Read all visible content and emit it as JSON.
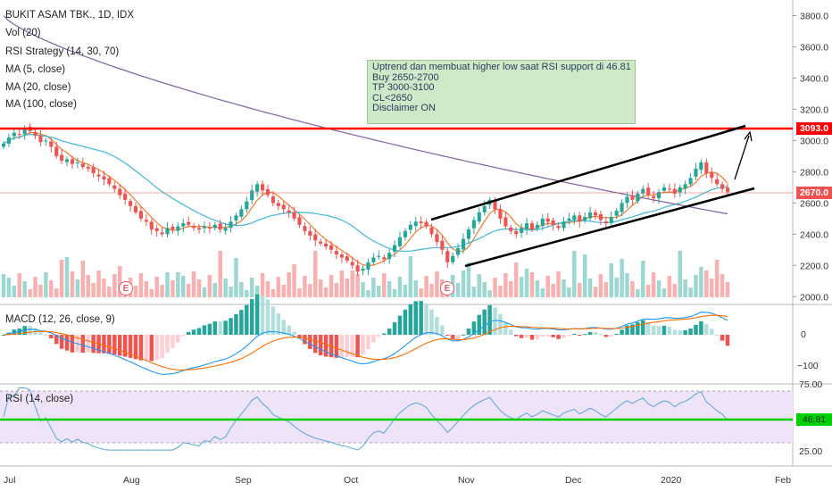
{
  "header": {
    "symbol_line": "BUKIT ASAM TBK., 1D, IDX",
    "volume": "Vol (20)",
    "strategy": "RSI Strategy (14, 30, 70)",
    "ma5": "MA (5, close)",
    "ma20": "MA (20, close)",
    "ma100": "MA (100, close)"
  },
  "note": {
    "line1": "Uptrend dan membuat higher low saat RSI support  di 46.81",
    "line2": "Buy 2650-2700",
    "line3": "TP 3000-3100",
    "line4": "CL<2650",
    "line5": "Disclaimer ON"
  },
  "tags": {
    "resistance": "3093.0",
    "last_price": "2670.0",
    "rsi_value": "46.81"
  },
  "earnings_marker": "E",
  "panels": {
    "macd_label": "MACD (12, 26, close, 9)",
    "rsi_label": "RSI (14, close)"
  },
  "colors": {
    "up": "#26a69a",
    "down": "#ef5350",
    "resistance_line": "#ff0000",
    "rsi_support_line": "#00d000",
    "ma5": "#f07b2c",
    "ma20": "#3fb8d9",
    "ma100": "#7e5fa2",
    "rsi_band": "#efe3f7"
  },
  "chart_data": {
    "type": "candlestick",
    "price_axis_ticks": [
      "3800.0",
      "3600.0",
      "3400.0",
      "3200.0",
      "3000.0",
      "2800.0",
      "2600.0",
      "2400.0",
      "2200.0",
      "2000.0"
    ],
    "macd_axis_ticks": [
      "0",
      "−100"
    ],
    "rsi_axis_ticks": [
      "75.00",
      "25.00"
    ],
    "x_tick_labels": [
      "Jul",
      "Aug",
      "Sep",
      "Oct",
      "Nov",
      "Dec",
      "2020",
      "Feb"
    ],
    "ylim_price": [
      1950,
      3900
    ],
    "resistance_level": 3093.0,
    "last_close": 2670.0,
    "rsi_last": 46.81,
    "closes": [
      2980,
      3020,
      3050,
      3040,
      3080,
      3060,
      3030,
      2990,
      3000,
      2960,
      2900,
      2870,
      2880,
      2850,
      2860,
      2830,
      2820,
      2790,
      2770,
      2750,
      2720,
      2690,
      2650,
      2620,
      2580,
      2540,
      2500,
      2480,
      2430,
      2420,
      2400,
      2440,
      2430,
      2450,
      2470,
      2460,
      2440,
      2430,
      2450,
      2440,
      2460,
      2430,
      2440,
      2480,
      2520,
      2560,
      2610,
      2680,
      2720,
      2680,
      2650,
      2600,
      2580,
      2560,
      2540,
      2500,
      2460,
      2420,
      2390,
      2360,
      2340,
      2320,
      2300,
      2270,
      2250,
      2230,
      2200,
      2160,
      2180,
      2220,
      2250,
      2260,
      2240,
      2280,
      2330,
      2380,
      2420,
      2460,
      2480,
      2470,
      2450,
      2400,
      2350,
      2300,
      2220,
      2260,
      2310,
      2370,
      2430,
      2490,
      2540,
      2580,
      2620,
      2560,
      2500,
      2450,
      2420,
      2400,
      2440,
      2470,
      2430,
      2460,
      2500,
      2480,
      2460,
      2440,
      2480,
      2500,
      2520,
      2480,
      2510,
      2540,
      2520,
      2490,
      2470,
      2510,
      2550,
      2600,
      2640,
      2620,
      2660,
      2690,
      2650,
      2630,
      2670,
      2700,
      2690,
      2660,
      2700,
      2720,
      2760,
      2820,
      2860,
      2790,
      2760,
      2720,
      2690,
      2670
    ],
    "macd_range": [
      -130,
      60
    ],
    "rsi_range": [
      15,
      80
    ]
  }
}
